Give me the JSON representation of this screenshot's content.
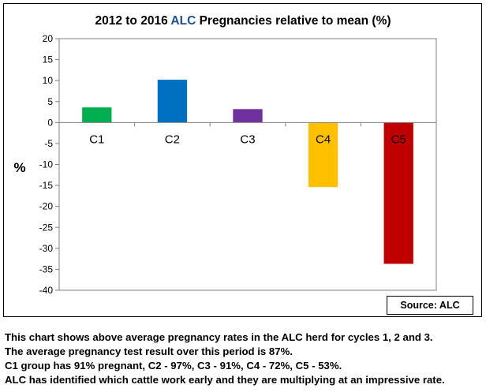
{
  "chart_data": {
    "type": "bar",
    "title_parts": [
      {
        "text": "2012 to 2016 ",
        "color": "#000000"
      },
      {
        "text": "ALC",
        "color": "#1f4e99"
      },
      {
        "text": " Pregnancies relative to mean (%)",
        "color": "#000000"
      }
    ],
    "ylabel": "%",
    "ylim": [
      -40,
      20
    ],
    "yticks": [
      20,
      15,
      10,
      5,
      0,
      -5,
      -10,
      -15,
      -20,
      -25,
      -30,
      -35,
      -40
    ],
    "categories": [
      "C1",
      "C2",
      "C3",
      "C4",
      "C5"
    ],
    "values": [
      3.6,
      10.2,
      3.2,
      -15.4,
      -33.7
    ],
    "colors": [
      "#00b050",
      "#0070c0",
      "#7030a0",
      "#ffc000",
      "#c00000"
    ],
    "grid": false,
    "legend": "none"
  },
  "source_label": "Source: ALC",
  "caption_lines": [
    "This chart shows above average pregnancy rates in the ALC herd for cycles 1, 2 and 3.",
    "The average pregnancy test result over this period is 87%.",
    "C1 group has 91% pregnant, C2 - 97%, C3 - 91%, C4 - 72%, C5 - 53%.",
    "ALC has identified which cattle work early and they are multiplying at an impressive rate."
  ]
}
